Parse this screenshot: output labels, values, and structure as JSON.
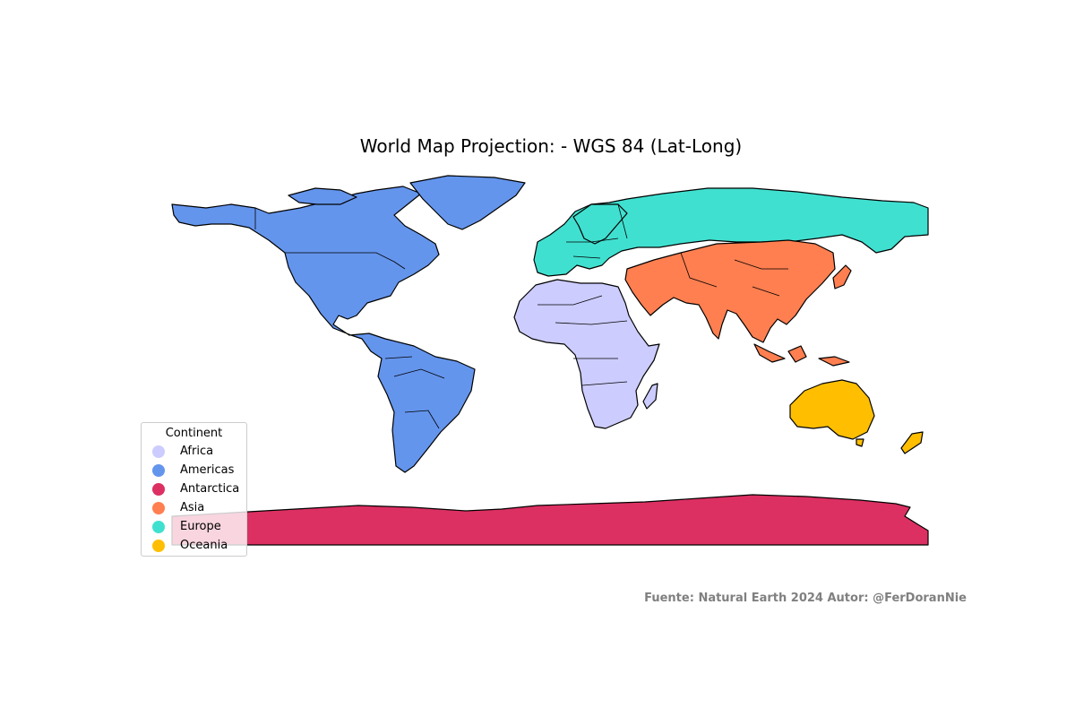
{
  "title": "World Map Projection: - WGS 84 (Lat-Long)",
  "legend": {
    "title": "Continent",
    "items": [
      {
        "label": "Africa",
        "color": "#ccccff"
      },
      {
        "label": "Americas",
        "color": "#6495ed"
      },
      {
        "label": "Antarctica",
        "color": "#dc3062"
      },
      {
        "label": "Asia",
        "color": "#ff7f50"
      },
      {
        "label": "Europe",
        "color": "#40e0d0"
      },
      {
        "label": "Oceania",
        "color": "#ffbf00"
      }
    ]
  },
  "credit": "Fuente: Natural Earth 2024 Autor: @FerDoranNie",
  "map": {
    "projection": "WGS 84 (Lat-Long)",
    "extent": {
      "lon": [
        -180,
        180
      ],
      "lat": [
        -90,
        84
      ]
    },
    "outline_color": "#000000"
  }
}
